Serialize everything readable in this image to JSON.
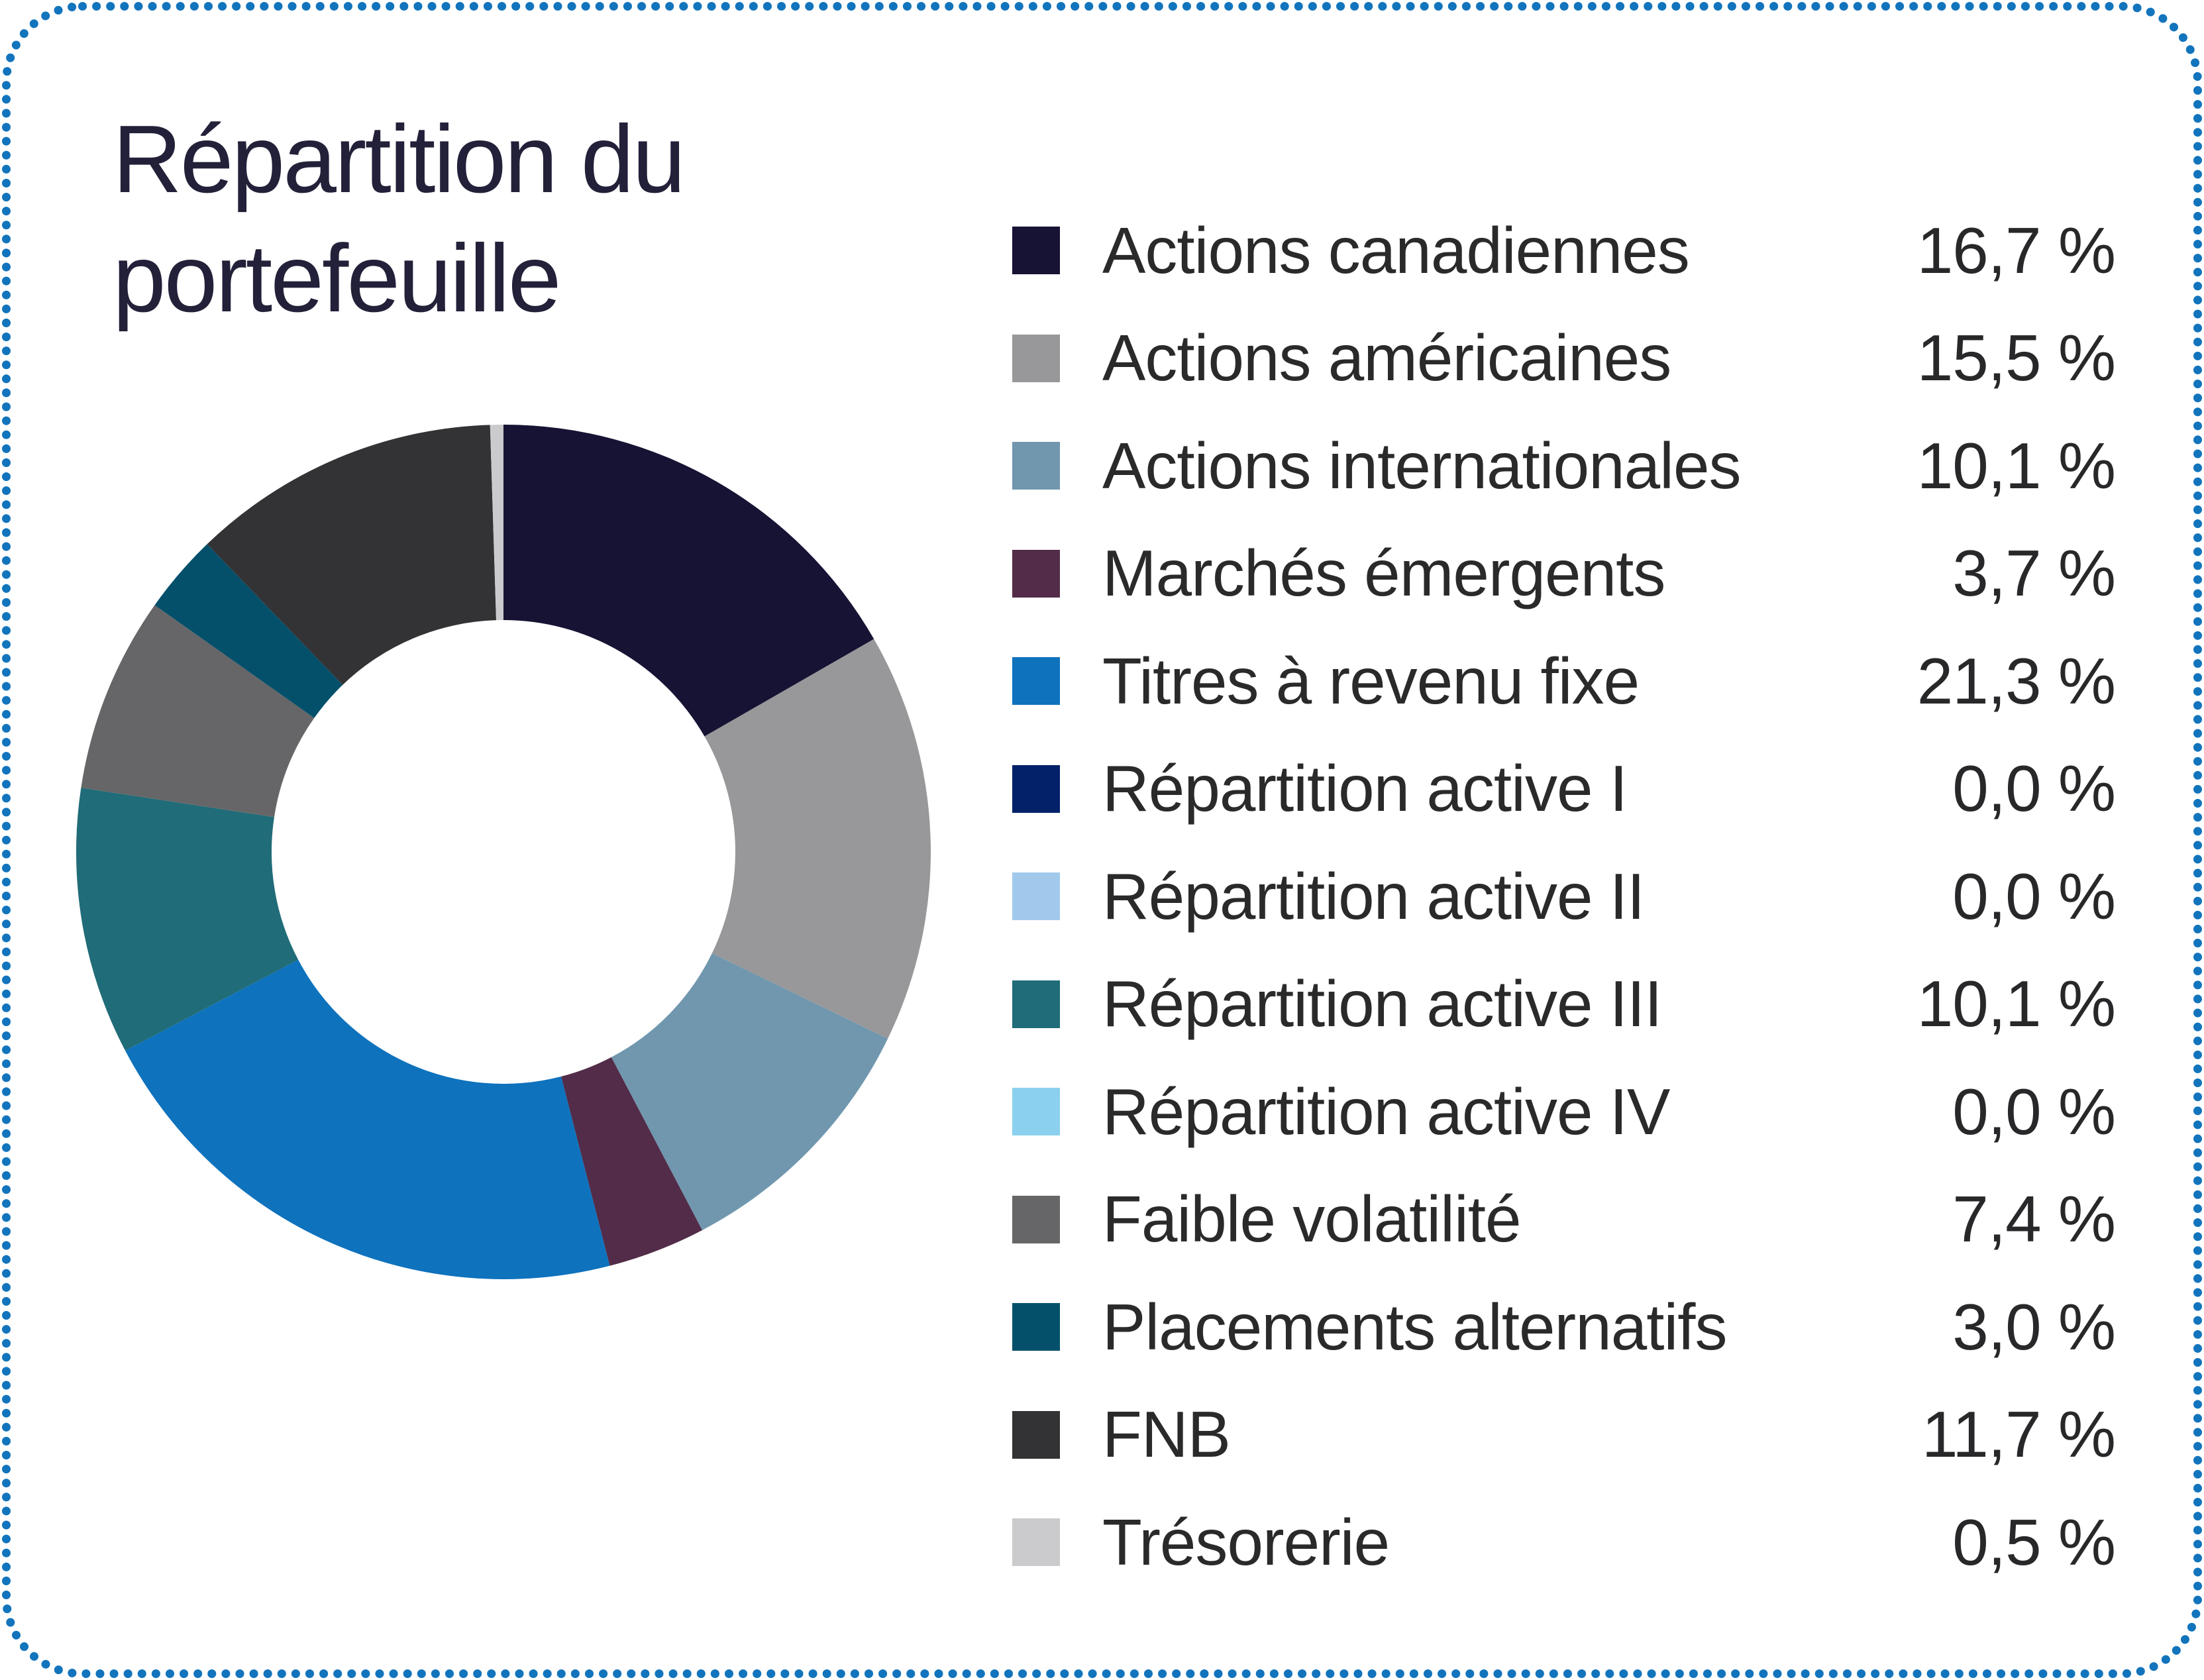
{
  "card": {
    "background": "#ffffff",
    "border_color": "#1274bc"
  },
  "title": "Répartition du portefeuille",
  "title_color": "#232039",
  "legend": {
    "items": [
      {
        "label": "Actions canadiennes",
        "value_label": "16,7 %",
        "color": "#161334"
      },
      {
        "label": "Actions américaines",
        "value_label": "15,5 %",
        "color": "#98989a"
      },
      {
        "label": "Actions internationales",
        "value_label": "10,1 %",
        "color": "#7097ae"
      },
      {
        "label": "Marchés émergents",
        "value_label": "3,7 %",
        "color": "#522c49"
      },
      {
        "label": "Titres à revenu fixe",
        "value_label": "21,3 %",
        "color": "#0e72bd"
      },
      {
        "label": "Répartition active I",
        "value_label": "0,0 %",
        "color": "#022169"
      },
      {
        "label": "Répartition active II",
        "value_label": "0,0 %",
        "color": "#a1c9ec"
      },
      {
        "label": "Répartition active III",
        "value_label": "10,1 %",
        "color": "#206c78"
      },
      {
        "label": "Répartition active IV",
        "value_label": "0,0 %",
        "color": "#8cd0ef"
      },
      {
        "label": "Faible volatilité",
        "value_label": "7,4 %",
        "color": "#666668"
      },
      {
        "label": "Placements alternatifs",
        "value_label": "3,0 %",
        "color": "#04506b"
      },
      {
        "label": "FNB",
        "value_label": "11,7 %",
        "color": "#333336"
      },
      {
        "label": "Trésorerie",
        "value_label": "0,5 %",
        "color": "#cbcbcd"
      }
    ]
  },
  "chart_data": {
    "type": "pie",
    "subtype": "donut",
    "title": "Répartition du portefeuille",
    "unit": "%",
    "categories": [
      "Actions canadiennes",
      "Actions américaines",
      "Actions internationales",
      "Marchés émergents",
      "Titres à revenu fixe",
      "Répartition active I",
      "Répartition active II",
      "Répartition active III",
      "Répartition active IV",
      "Faible volatilité",
      "Placements alternatifs",
      "FNB",
      "Trésorerie"
    ],
    "values": [
      16.7,
      15.5,
      10.1,
      3.7,
      21.3,
      0.0,
      0.0,
      10.1,
      0.0,
      7.4,
      3.0,
      11.7,
      0.5
    ],
    "colors": [
      "#161334",
      "#98989a",
      "#7097ae",
      "#522c49",
      "#0e72bd",
      "#022169",
      "#a1c9ec",
      "#206c78",
      "#8cd0ef",
      "#666668",
      "#04506b",
      "#333336",
      "#cbcbcd"
    ],
    "start_angle_deg": 0,
    "direction": "clockwise",
    "inner_radius_ratio": 0.54,
    "legend_position": "right",
    "grid": false
  }
}
